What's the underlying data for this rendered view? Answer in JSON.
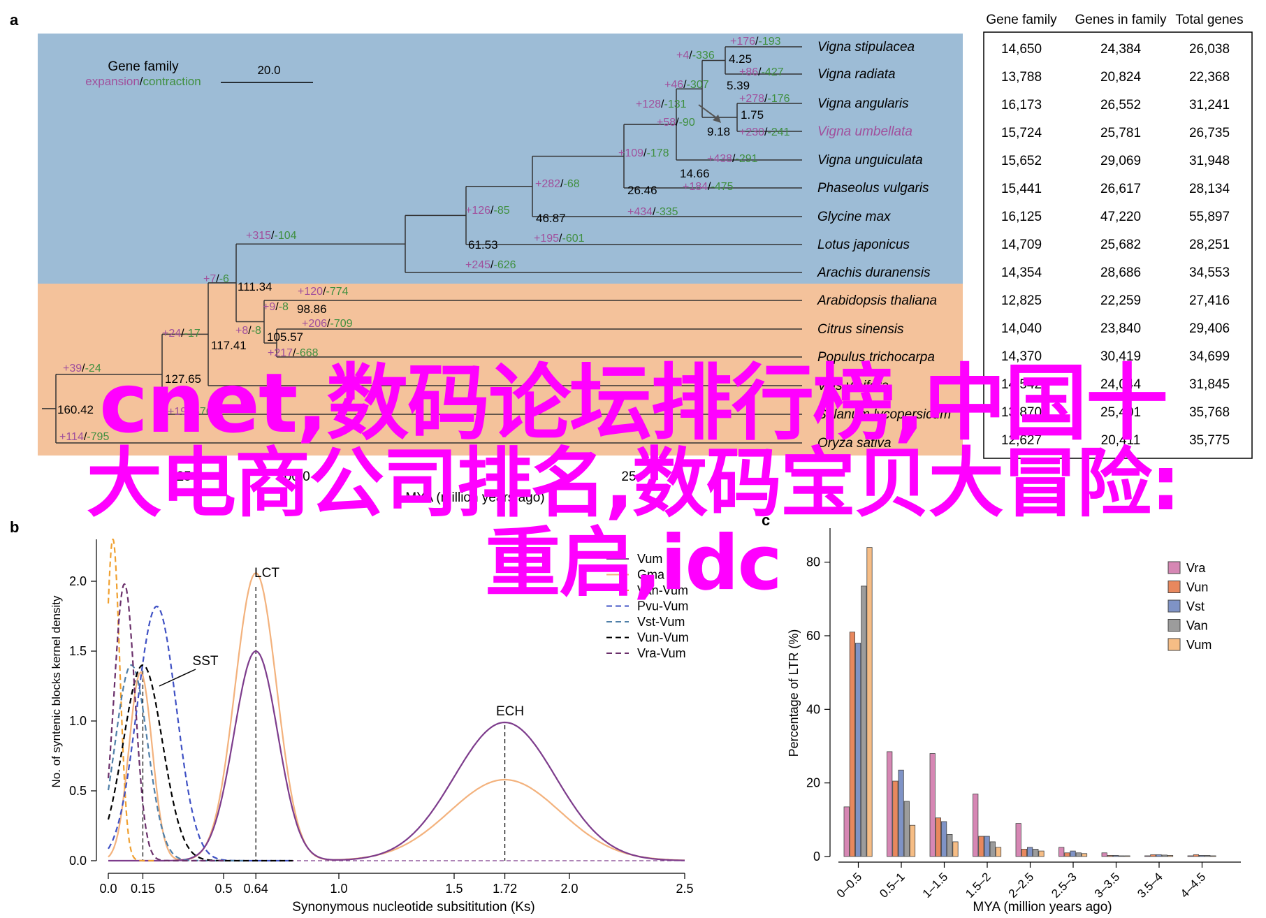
{
  "panels": {
    "a": "a",
    "b": "b",
    "c": "c"
  },
  "panel_a": {
    "legend": {
      "title": "Gene family",
      "expansion": "expansion",
      "slash": "/",
      "contraction": "contraction",
      "scale": "20.0"
    },
    "axis": {
      "ticks": [
        "125",
        "100.0",
        "25"
      ],
      "label": "MYA (million years ago)"
    },
    "species": [
      {
        "name": "Vigna stipulacea",
        "highlight": false
      },
      {
        "name": "Vigna radiata",
        "highlight": false
      },
      {
        "name": "Vigna angularis",
        "highlight": false
      },
      {
        "name": "Vigna umbellata",
        "highlight": true
      },
      {
        "name": "Vigna unguiculata",
        "highlight": false
      },
      {
        "name": "Phaseolus vulgaris",
        "highlight": false
      },
      {
        "name": "Glycine max",
        "highlight": false
      },
      {
        "name": "Lotus japonicus",
        "highlight": false
      },
      {
        "name": "Arachis duranensis",
        "highlight": false
      },
      {
        "name": "Arabidopsis thaliana",
        "highlight": false
      },
      {
        "name": "Citrus sinensis",
        "highlight": false
      },
      {
        "name": "Populus trichocarpa",
        "highlight": false
      },
      {
        "name": "Vitis vinifera",
        "highlight": false
      },
      {
        "name": "Solanum lycopersicum",
        "highlight": false
      },
      {
        "name": "Oryza sativa",
        "highlight": false
      }
    ],
    "nodes": [
      "4.25",
      "5.39",
      "1.75",
      "9.18",
      "14.66",
      "26.46",
      "46.87",
      "61.53",
      "111.34",
      "98.86",
      "105.57",
      "117.41",
      "127.65",
      "160.42"
    ],
    "changes": [
      {
        "plus": "+176",
        "minus": "-193"
      },
      {
        "plus": "+4",
        "minus": "-336"
      },
      {
        "plus": "+86",
        "minus": "-427"
      },
      {
        "plus": "+46",
        "minus": "-307"
      },
      {
        "plus": "+278",
        "minus": "-176"
      },
      {
        "plus": "+128",
        "minus": "-131"
      },
      {
        "plus": "+58",
        "minus": "-90"
      },
      {
        "plus": "+230",
        "minus": "-241"
      },
      {
        "plus": "+109",
        "minus": "-178"
      },
      {
        "plus": "+438",
        "minus": "-291"
      },
      {
        "plus": "+184",
        "minus": "-475"
      },
      {
        "plus": "+282",
        "minus": "-68"
      },
      {
        "plus": "+434",
        "minus": "-335"
      },
      {
        "plus": "+126",
        "minus": "-85"
      },
      {
        "plus": "+195",
        "minus": "-601"
      },
      {
        "plus": "+315",
        "minus": "-104"
      },
      {
        "plus": "+245",
        "minus": "-626"
      },
      {
        "plus": "+7",
        "minus": "-6"
      },
      {
        "plus": "+120",
        "minus": "-774"
      },
      {
        "plus": "+9",
        "minus": "-8"
      },
      {
        "plus": "+206",
        "minus": "-709"
      },
      {
        "plus": "+8",
        "minus": "-8"
      },
      {
        "plus": "+217",
        "minus": "-668"
      },
      {
        "plus": "+24",
        "minus": "-17"
      },
      {
        "plus": "+39",
        "minus": "-24"
      },
      {
        "plus": "+197",
        "minus": "-76"
      },
      {
        "plus": "+114",
        "minus": "-795"
      }
    ],
    "colors": {
      "expansion": "#a0509c",
      "contraction": "#3f8f3f",
      "bg_fabaceae": "#9dbcd6",
      "bg_other": "#f4c29b"
    }
  },
  "table": {
    "headers": [
      "Gene family",
      "Genes in family",
      "Total genes"
    ],
    "rows": [
      [
        "14,650",
        "24,384",
        "26,038"
      ],
      [
        "13,788",
        "20,824",
        "22,368"
      ],
      [
        "16,173",
        "26,552",
        "31,241"
      ],
      [
        "15,724",
        "25,781",
        "26,735"
      ],
      [
        "15,652",
        "29,069",
        "31,948"
      ],
      [
        "15,441",
        "26,617",
        "28,134"
      ],
      [
        "16,125",
        "47,220",
        "55,897"
      ],
      [
        "14,709",
        "25,682",
        "28,251"
      ],
      [
        "14,354",
        "28,686",
        "34,553"
      ],
      [
        "12,825",
        "22,259",
        "27,416"
      ],
      [
        "14,040",
        "23,840",
        "29,406"
      ],
      [
        "14,370",
        "30,419",
        "34,699"
      ],
      [
        "14,542",
        "24,044",
        "31,845"
      ],
      [
        "13,870",
        "25,401",
        "35,768"
      ],
      [
        "12,627",
        "20,411",
        "35,775"
      ]
    ]
  },
  "panel_b": {
    "ylabel": "No. of syntenic blocks kernel density",
    "xlabel": "Synonymous nucleotide subsititution (Ks)",
    "annotations": {
      "lct": "LCT",
      "ech": "ECH",
      "sst": "SST"
    },
    "legend_entries": [
      {
        "label": "Vum",
        "color": "#7d3c8c",
        "dash": false
      },
      {
        "label": "Gma",
        "color": "#f3b27d",
        "dash": false
      },
      {
        "label": "Van-Vum",
        "color": "#f0a030",
        "dash": true
      },
      {
        "label": "Pvu-Vum",
        "color": "#3f51c4",
        "dash": true
      },
      {
        "label": "Vst-Vum",
        "color": "#4f7fa8",
        "dash": true
      },
      {
        "label": "Vun-Vum",
        "color": "#000000",
        "dash": true
      },
      {
        "label": "Vra-Vum",
        "color": "#6a2f6a",
        "dash": true
      }
    ]
  },
  "panel_c": {
    "ylabel": "Percentage of LTR (%)",
    "xlabel": "MYA (million years ago)"
  },
  "watermark": {
    "line1": "cnet,数码论坛排行榜,中国十",
    "line2": "大电商公司排名,数码宝贝大冒险:",
    "line3": "重启,idc"
  },
  "chart_data": [
    {
      "type": "line",
      "x": {
        "ticks": [
          "0.0",
          "0.15",
          "0.5",
          "0.64",
          "1.0",
          "1.5",
          "1.72",
          "2.0",
          "2.5"
        ],
        "range": [
          0,
          2.5
        ]
      },
      "ylim": [
        0,
        2.3
      ],
      "yticks": [
        "0.0",
        "0.5",
        "1.0",
        "1.5",
        "2.0"
      ],
      "xlabel": "Synonymous nucleotide subsititution (Ks)",
      "ylabel": "No. of syntenic blocks kernel density",
      "series": [
        {
          "name": "Vum",
          "peaks": [
            {
              "x": 0.64,
              "y": 1.5
            },
            {
              "x": 1.72,
              "y": 0.99
            }
          ]
        },
        {
          "name": "Gma",
          "peaks": [
            {
              "x": 0.64,
              "y": 2.06
            },
            {
              "x": 1.72,
              "y": 0.58
            },
            {
              "x": 0.14,
              "y": 1.35
            }
          ]
        },
        {
          "name": "Van-Vum",
          "peaks": [
            {
              "x": 0.02,
              "y": 2.3
            }
          ]
        },
        {
          "name": "Pvu-Vum",
          "peaks": [
            {
              "x": 0.21,
              "y": 1.82
            }
          ]
        },
        {
          "name": "Vst-Vum",
          "peaks": [
            {
              "x": 0.1,
              "y": 1.4
            }
          ]
        },
        {
          "name": "Vun-Vum",
          "peaks": [
            {
              "x": 0.15,
              "y": 1.4
            }
          ]
        },
        {
          "name": "Vra-Vum",
          "peaks": [
            {
              "x": 0.07,
              "y": 1.98
            }
          ]
        }
      ],
      "annotations": [
        {
          "text": "LCT",
          "x": 0.64
        },
        {
          "text": "ECH",
          "x": 1.72
        },
        {
          "text": "SST",
          "x": 0.15
        }
      ],
      "legend": "top-right"
    },
    {
      "type": "bar",
      "categories": [
        "0–0.5",
        "0.5–1",
        "1–1.5",
        "1.5–2",
        "2–2.5",
        "2.5–3",
        "3–3.5",
        "3.5–4",
        "4–4.5"
      ],
      "ylim": [
        0,
        90
      ],
      "yticks": [
        "0",
        "20",
        "40",
        "60",
        "80"
      ],
      "xlabel": "MYA (million years ago)",
      "ylabel": "Percentage of LTR (%)",
      "series": [
        {
          "name": "Vra",
          "color": "#d687b4",
          "values": [
            13.5,
            28.5,
            28,
            17,
            9,
            2.5,
            1,
            0.2,
            0.2
          ]
        },
        {
          "name": "Vun",
          "color": "#e8885e",
          "values": [
            61,
            20.5,
            10.5,
            5.5,
            2,
            1,
            0.3,
            0.5,
            0.5
          ]
        },
        {
          "name": "Vst",
          "color": "#7f93c6",
          "values": [
            58,
            23.5,
            9.5,
            5.5,
            2.5,
            1.5,
            0.3,
            0.5,
            0.3
          ]
        },
        {
          "name": "Van",
          "color": "#9c9c9c",
          "values": [
            73.5,
            15,
            6,
            4,
            2,
            1,
            0.2,
            0.4,
            0.3
          ]
        },
        {
          "name": "Vum",
          "color": "#f6bd85",
          "values": [
            84,
            8.5,
            4,
            2.5,
            1.5,
            0.8,
            0.2,
            0.3,
            0.2
          ]
        }
      ],
      "legend": "top-right"
    }
  ]
}
